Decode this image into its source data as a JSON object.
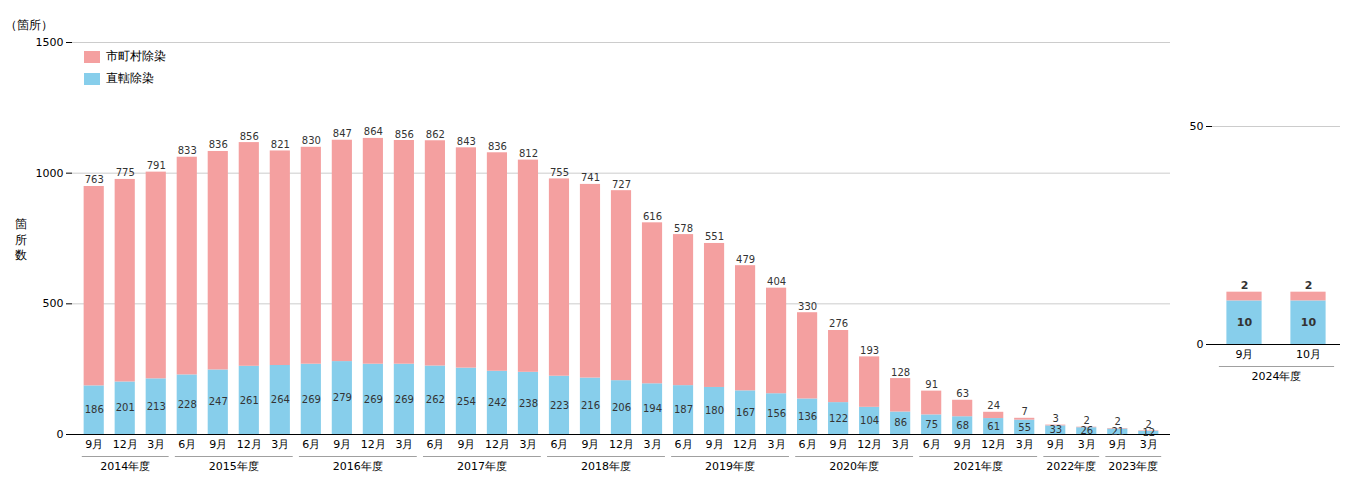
{
  "chart_data": [
    {
      "type": "bar",
      "stacked": true,
      "annotations": [
        "（箇所）"
      ],
      "ylabel": "箇\n所\n数",
      "categories": [
        "9月",
        "12月",
        "3月",
        "6月",
        "9月",
        "12月",
        "3月",
        "6月",
        "9月",
        "12月",
        "3月",
        "6月",
        "9月",
        "12月",
        "3月",
        "6月",
        "9月",
        "12月",
        "3月",
        "6月",
        "9月",
        "12月",
        "3月",
        "6月",
        "9月",
        "12月",
        "3月",
        "6月",
        "9月",
        "12月",
        "3月",
        "9月",
        "3月",
        "9月",
        "3月"
      ],
      "category_groups": [
        "2014年度",
        "2014年度",
        "2014年度",
        "2015年度",
        "2015年度",
        "2015年度",
        "2015年度",
        "2016年度",
        "2016年度",
        "2016年度",
        "2016年度",
        "2017年度",
        "2017年度",
        "2017年度",
        "2017年度",
        "2018年度",
        "2018年度",
        "2018年度",
        "2018年度",
        "2019年度",
        "2019年度",
        "2019年度",
        "2019年度",
        "2020年度",
        "2020年度",
        "2020年度",
        "2020年度",
        "2021年度",
        "2021年度",
        "2021年度",
        "2021年度",
        "2022年度",
        "2022年度",
        "2023年度",
        "2023年度"
      ],
      "series": [
        {
          "name": "直轄除染",
          "color": "#87CEEB",
          "values": [
            186,
            201,
            213,
            228,
            247,
            261,
            264,
            269,
            279,
            269,
            269,
            262,
            254,
            242,
            238,
            223,
            216,
            206,
            194,
            187,
            180,
            167,
            156,
            136,
            122,
            104,
            86,
            75,
            68,
            61,
            55,
            33,
            26,
            21,
            12
          ]
        },
        {
          "name": "市町村除染",
          "color": "#F4A0A0",
          "values": [
            763,
            775,
            791,
            833,
            836,
            856,
            821,
            830,
            847,
            864,
            856,
            862,
            843,
            836,
            812,
            755,
            741,
            727,
            616,
            578,
            551,
            479,
            404,
            330,
            276,
            193,
            128,
            91,
            63,
            24,
            7,
            3,
            2,
            2,
            2
          ]
        }
      ],
      "ylim": [
        0,
        1500
      ],
      "yticks": [
        0,
        500,
        1000,
        1500
      ],
      "grid": true,
      "legend": "top-left",
      "data_labels": true
    },
    {
      "type": "bar",
      "stacked": true,
      "categories": [
        "9月",
        "10月"
      ],
      "category_groups": [
        "2024年度",
        "2024年度"
      ],
      "series": [
        {
          "name": "直轄除染",
          "color": "#87CEEB",
          "values": [
            10,
            10
          ]
        },
        {
          "name": "市町村除染",
          "color": "#F4A0A0",
          "values": [
            2,
            2
          ]
        }
      ],
      "ylim": [
        0,
        50
      ],
      "yticks": [
        0,
        50
      ],
      "grid": true,
      "data_labels": true
    }
  ]
}
